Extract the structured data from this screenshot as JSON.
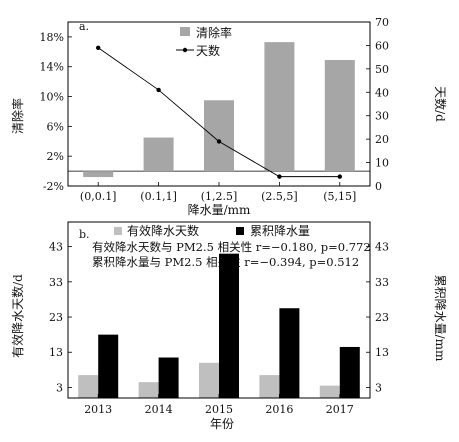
{
  "chart_data": [
    {
      "type": "bar",
      "panel_label": "a.",
      "categories": [
        "(0,0.1]",
        "(0.1,1]",
        "(1,2.5]",
        "(2.5,5]",
        "(5,15]"
      ],
      "series": [
        {
          "name": "清除率",
          "kind": "bar",
          "axis": "left",
          "color": "#a6a6a6",
          "values": [
            -0.8,
            4.5,
            9.5,
            17.3,
            14.9
          ]
        },
        {
          "name": "天数",
          "kind": "line",
          "axis": "right",
          "color": "#000000",
          "values": [
            59,
            41,
            19,
            4,
            4
          ]
        }
      ],
      "xlabel": "降水量/mm",
      "ylabel": "清除率",
      "ylabel_right": "天数/d",
      "ylim": [
        -2,
        20
      ],
      "ylim_right": [
        0,
        70
      ],
      "yticks": [
        "-2%",
        "2%",
        "6%",
        "10%",
        "14%",
        "18%"
      ],
      "yticks_right": [
        "0",
        "10",
        "20",
        "30",
        "40",
        "50",
        "60",
        "70"
      ],
      "legend_position": "top-center"
    },
    {
      "type": "bar",
      "panel_label": "b.",
      "categories": [
        "2013",
        "2014",
        "2015",
        "2016",
        "2017"
      ],
      "series": [
        {
          "name": "有效降水天数",
          "axis": "left",
          "color": "#bfbfbf",
          "values": [
            6.5,
            4.5,
            10,
            6.5,
            3.5
          ]
        },
        {
          "name": "累积降水量",
          "axis": "right",
          "color": "#000000",
          "values": [
            18,
            11.5,
            41,
            25.5,
            14.5
          ]
        }
      ],
      "xlabel": "年份",
      "ylabel": "有效降水天数/d",
      "ylabel_right": "累积降水量/mm",
      "ylim": [
        0,
        50
      ],
      "ylim_right": [
        0,
        50
      ],
      "yticks": [
        "3",
        "13",
        "23",
        "33",
        "43"
      ],
      "yticks_right": [
        "3",
        "13",
        "23",
        "33",
        "43"
      ],
      "annotations": [
        "有效降水天数与 PM2.5 相关性 r=−0.180, p=0.772",
        "累积降水量与 PM2.5 相关性 r=−0.394, p=0.512"
      ],
      "legend_position": "top"
    }
  ]
}
